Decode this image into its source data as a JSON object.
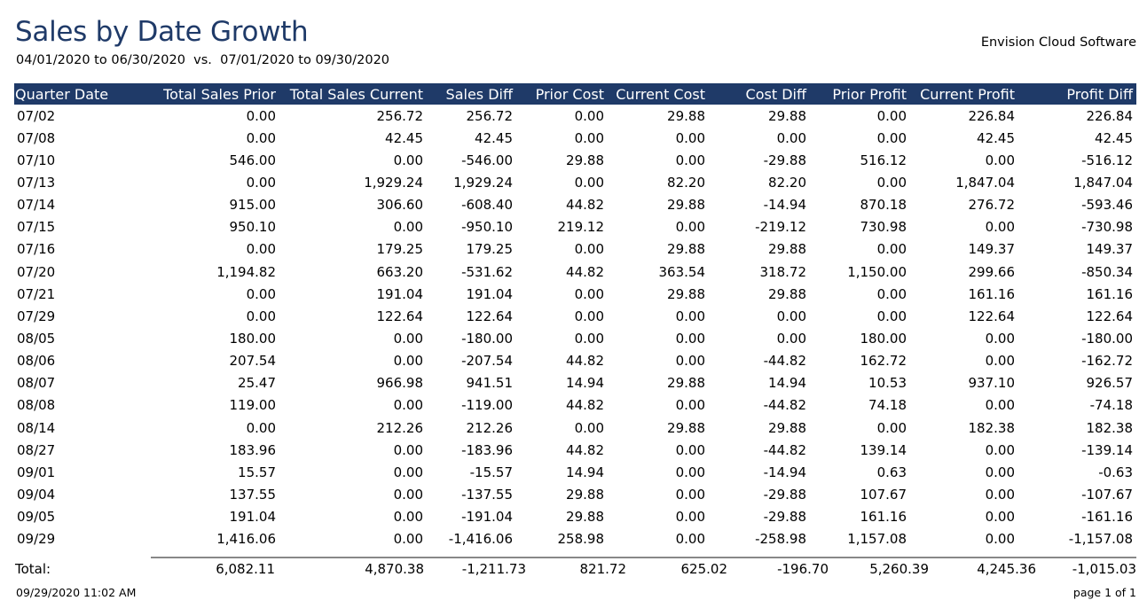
{
  "report": {
    "title": "Sales by Date Growth",
    "subtitle": "04/01/2020 to 06/30/2020  vs.  07/01/2020 to 09/30/2020",
    "company": "Envision Cloud Software"
  },
  "table": {
    "headers": [
      "Quarter Date",
      "Total Sales Prior",
      "Total Sales Current",
      "Sales Diff",
      "Prior Cost",
      "Current Cost",
      "Cost Diff",
      "Prior Profit",
      "Current Profit",
      "Profit Diff"
    ],
    "rows": [
      [
        "07/02",
        "0.00",
        "256.72",
        "256.72",
        "0.00",
        "29.88",
        "29.88",
        "0.00",
        "226.84",
        "226.84"
      ],
      [
        "07/08",
        "0.00",
        "42.45",
        "42.45",
        "0.00",
        "0.00",
        "0.00",
        "0.00",
        "42.45",
        "42.45"
      ],
      [
        "07/10",
        "546.00",
        "0.00",
        "-546.00",
        "29.88",
        "0.00",
        "-29.88",
        "516.12",
        "0.00",
        "-516.12"
      ],
      [
        "07/13",
        "0.00",
        "1,929.24",
        "1,929.24",
        "0.00",
        "82.20",
        "82.20",
        "0.00",
        "1,847.04",
        "1,847.04"
      ],
      [
        "07/14",
        "915.00",
        "306.60",
        "-608.40",
        "44.82",
        "29.88",
        "-14.94",
        "870.18",
        "276.72",
        "-593.46"
      ],
      [
        "07/15",
        "950.10",
        "0.00",
        "-950.10",
        "219.12",
        "0.00",
        "-219.12",
        "730.98",
        "0.00",
        "-730.98"
      ],
      [
        "07/16",
        "0.00",
        "179.25",
        "179.25",
        "0.00",
        "29.88",
        "29.88",
        "0.00",
        "149.37",
        "149.37"
      ],
      [
        "07/20",
        "1,194.82",
        "663.20",
        "-531.62",
        "44.82",
        "363.54",
        "318.72",
        "1,150.00",
        "299.66",
        "-850.34"
      ],
      [
        "07/21",
        "0.00",
        "191.04",
        "191.04",
        "0.00",
        "29.88",
        "29.88",
        "0.00",
        "161.16",
        "161.16"
      ],
      [
        "07/29",
        "0.00",
        "122.64",
        "122.64",
        "0.00",
        "0.00",
        "0.00",
        "0.00",
        "122.64",
        "122.64"
      ],
      [
        "08/05",
        "180.00",
        "0.00",
        "-180.00",
        "0.00",
        "0.00",
        "0.00",
        "180.00",
        "0.00",
        "-180.00"
      ],
      [
        "08/06",
        "207.54",
        "0.00",
        "-207.54",
        "44.82",
        "0.00",
        "-44.82",
        "162.72",
        "0.00",
        "-162.72"
      ],
      [
        "08/07",
        "25.47",
        "966.98",
        "941.51",
        "14.94",
        "29.88",
        "14.94",
        "10.53",
        "937.10",
        "926.57"
      ],
      [
        "08/08",
        "119.00",
        "0.00",
        "-119.00",
        "44.82",
        "0.00",
        "-44.82",
        "74.18",
        "0.00",
        "-74.18"
      ],
      [
        "08/14",
        "0.00",
        "212.26",
        "212.26",
        "0.00",
        "29.88",
        "29.88",
        "0.00",
        "182.38",
        "182.38"
      ],
      [
        "08/27",
        "183.96",
        "0.00",
        "-183.96",
        "44.82",
        "0.00",
        "-44.82",
        "139.14",
        "0.00",
        "-139.14"
      ],
      [
        "09/01",
        "15.57",
        "0.00",
        "-15.57",
        "14.94",
        "0.00",
        "-14.94",
        "0.63",
        "0.00",
        "-0.63"
      ],
      [
        "09/04",
        "137.55",
        "0.00",
        "-137.55",
        "29.88",
        "0.00",
        "-29.88",
        "107.67",
        "0.00",
        "-107.67"
      ],
      [
        "09/05",
        "191.04",
        "0.00",
        "-191.04",
        "29.88",
        "0.00",
        "-29.88",
        "161.16",
        "0.00",
        "-161.16"
      ],
      [
        "09/29",
        "1,416.06",
        "0.00",
        "-1,416.06",
        "258.98",
        "0.00",
        "-258.98",
        "1,157.08",
        "0.00",
        "-1,157.08"
      ]
    ],
    "totals": [
      "Total:",
      "6,082.11",
      "4,870.38",
      "-1,211.73",
      "821.72",
      "625.02",
      "-196.70",
      "5,260.39",
      "4,245.36",
      "-1,015.03"
    ]
  },
  "footer": {
    "timestamp": "09/29/2020 11:02 AM",
    "page": "page 1 of 1"
  },
  "colors": {
    "header_bg": "#1f3a68",
    "title": "#1f3a68"
  }
}
